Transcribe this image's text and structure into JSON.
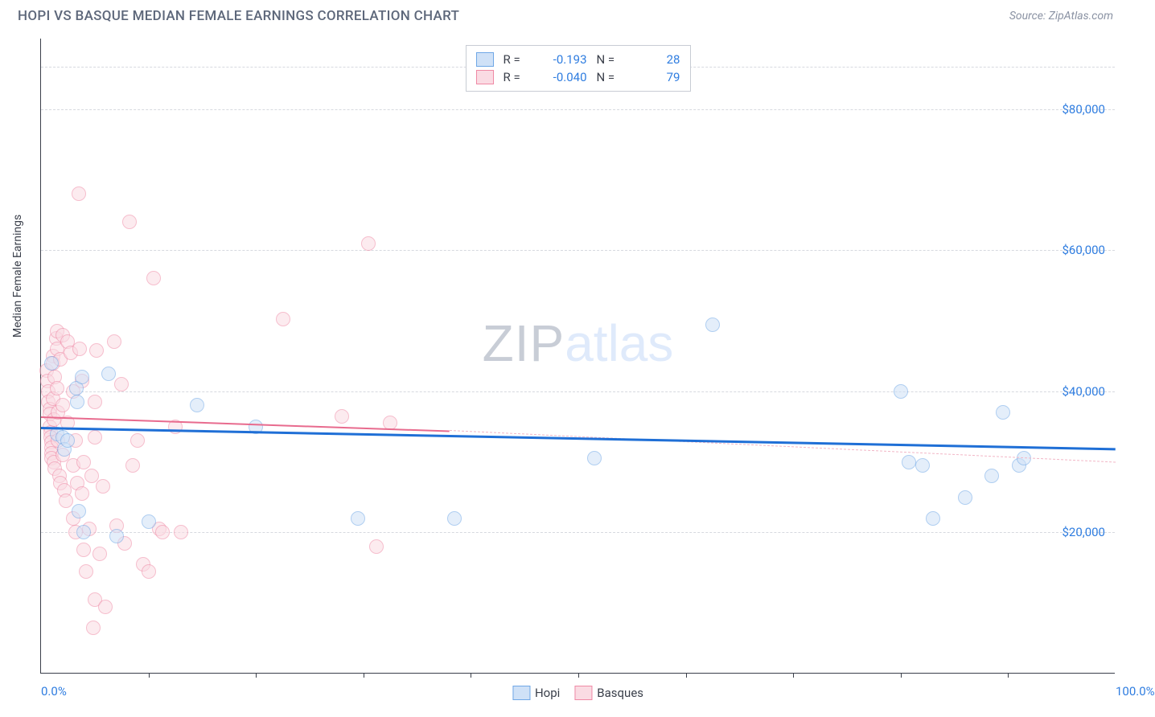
{
  "header": {
    "title": "HOPI VS BASQUE MEDIAN FEMALE EARNINGS CORRELATION CHART",
    "source_label": "Source: ",
    "source_name": "ZipAtlas.com"
  },
  "chart": {
    "type": "scatter",
    "ylabel": "Median Female Earnings",
    "xlim": [
      0,
      100
    ],
    "ylim": [
      0,
      90000
    ],
    "x_tick_start": "0.0%",
    "x_tick_end": "100.0%",
    "x_minor_ticks": [
      10,
      20,
      30,
      40,
      50,
      60,
      70,
      80,
      90
    ],
    "y_gridlines": [
      20000,
      40000,
      60000,
      80000
    ],
    "y_tick_labels": [
      "$20,000",
      "$40,000",
      "$60,000",
      "$80,000"
    ],
    "grid_color": "#d6d9df",
    "axis_color": "#3a3f4a",
    "background_color": "#ffffff",
    "marker_radius": 9,
    "watermark_zip": "ZIP",
    "watermark_atlas": "atlas",
    "series": [
      {
        "name": "Hopi",
        "fill": "#cfe1f7",
        "stroke": "#6fa7e6",
        "fill_opacity": 0.55,
        "reg_line_color": "#1f6fd6",
        "reg_line_width": 3,
        "reg_line_dash": "solid",
        "reg_start_y": 35000,
        "reg_end_y": 32000,
        "reg_x_end": 100,
        "R": "-0.193",
        "N": "28",
        "points": [
          [
            1.0,
            44000
          ],
          [
            1.5,
            34000
          ],
          [
            2.0,
            33500
          ],
          [
            2.2,
            31800
          ],
          [
            2.5,
            33000
          ],
          [
            3.3,
            40500
          ],
          [
            3.4,
            38500
          ],
          [
            3.8,
            42000
          ],
          [
            3.5,
            23000
          ],
          [
            4.0,
            20000
          ],
          [
            6.3,
            42500
          ],
          [
            7.0,
            19500
          ],
          [
            10.0,
            21500
          ],
          [
            14.5,
            38000
          ],
          [
            20.0,
            35000
          ],
          [
            29.5,
            22000
          ],
          [
            38.5,
            22000
          ],
          [
            51.5,
            30500
          ],
          [
            62.5,
            49500
          ],
          [
            80.0,
            40000
          ],
          [
            80.8,
            30000
          ],
          [
            82.0,
            29500
          ],
          [
            83.0,
            22000
          ],
          [
            86.0,
            25000
          ],
          [
            88.5,
            28000
          ],
          [
            89.5,
            37000
          ],
          [
            91.0,
            29500
          ],
          [
            91.5,
            30500
          ]
        ]
      },
      {
        "name": "Basques",
        "fill": "#fadbe3",
        "stroke": "#ef89a5",
        "fill_opacity": 0.55,
        "reg_line_color": "#e86b8e",
        "reg_line_width": 2.5,
        "reg_line_dash": "solid",
        "reg_start_y": 36500,
        "reg_end_y": 34500,
        "reg_x_end": 38,
        "reg_dash_ext_color": "#f2b6c6",
        "reg_dash_ext_y_end": 30000,
        "R": "-0.040",
        "N": "79",
        "points": [
          [
            0.5,
            43000
          ],
          [
            0.6,
            41500
          ],
          [
            0.7,
            40000
          ],
          [
            0.7,
            38500
          ],
          [
            0.8,
            37500
          ],
          [
            0.8,
            36800
          ],
          [
            0.8,
            35000
          ],
          [
            0.9,
            34200
          ],
          [
            0.9,
            33500
          ],
          [
            1.0,
            32800
          ],
          [
            1.0,
            32000
          ],
          [
            1.0,
            31200
          ],
          [
            1.0,
            30500
          ],
          [
            1.1,
            45000
          ],
          [
            1.1,
            44000
          ],
          [
            1.1,
            39000
          ],
          [
            1.2,
            36000
          ],
          [
            1.2,
            30000
          ],
          [
            1.3,
            29000
          ],
          [
            1.3,
            42000
          ],
          [
            1.4,
            47500
          ],
          [
            1.5,
            48500
          ],
          [
            1.5,
            46000
          ],
          [
            1.5,
            40500
          ],
          [
            1.6,
            37000
          ],
          [
            1.6,
            33000
          ],
          [
            1.7,
            28000
          ],
          [
            1.8,
            44500
          ],
          [
            1.8,
            27000
          ],
          [
            2.0,
            31000
          ],
          [
            2.0,
            38000
          ],
          [
            2.0,
            48000
          ],
          [
            2.2,
            26000
          ],
          [
            2.3,
            24500
          ],
          [
            2.5,
            35500
          ],
          [
            2.5,
            47000
          ],
          [
            2.8,
            45500
          ],
          [
            3.0,
            29500
          ],
          [
            3.0,
            22000
          ],
          [
            3.0,
            40000
          ],
          [
            3.2,
            20000
          ],
          [
            3.2,
            33000
          ],
          [
            3.4,
            27000
          ],
          [
            3.5,
            68000
          ],
          [
            3.6,
            46000
          ],
          [
            3.8,
            41500
          ],
          [
            3.8,
            25500
          ],
          [
            4.0,
            30000
          ],
          [
            4.0,
            17500
          ],
          [
            4.2,
            14500
          ],
          [
            4.5,
            20500
          ],
          [
            4.7,
            28000
          ],
          [
            4.9,
            6500
          ],
          [
            5.0,
            38500
          ],
          [
            5.0,
            33500
          ],
          [
            5.0,
            10500
          ],
          [
            5.2,
            45800
          ],
          [
            5.5,
            17000
          ],
          [
            5.8,
            26500
          ],
          [
            6.0,
            9500
          ],
          [
            6.8,
            47000
          ],
          [
            7.0,
            21000
          ],
          [
            7.5,
            41000
          ],
          [
            7.8,
            18500
          ],
          [
            8.2,
            64000
          ],
          [
            8.5,
            29500
          ],
          [
            9.0,
            33000
          ],
          [
            9.5,
            15500
          ],
          [
            10.0,
            14500
          ],
          [
            10.5,
            56000
          ],
          [
            11.0,
            20500
          ],
          [
            11.3,
            20000
          ],
          [
            12.5,
            35000
          ],
          [
            13.0,
            20000
          ],
          [
            22.5,
            50200
          ],
          [
            28.0,
            36500
          ],
          [
            30.5,
            61000
          ],
          [
            31.2,
            18000
          ],
          [
            32.5,
            35500
          ]
        ]
      }
    ],
    "legend_top": {
      "r_label": "R =",
      "n_label": "N ="
    },
    "legend_bottom": {
      "items": [
        "Hopi",
        "Basques"
      ]
    }
  }
}
